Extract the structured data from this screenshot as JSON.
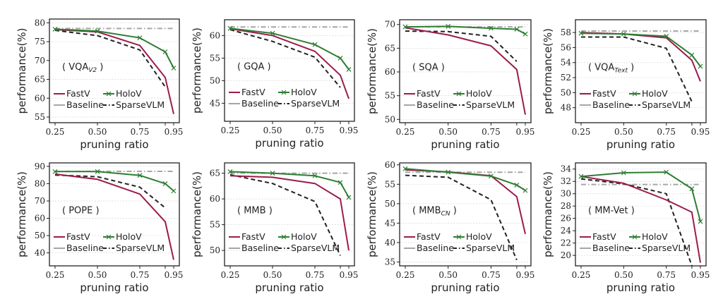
{
  "figure": {
    "colors": {
      "FastV": "#9b1c4c",
      "HoloV": "#2e7d32",
      "Baseline": "#a6a6a6",
      "SparseVLM": "#222222"
    },
    "legend_entries": [
      "FastV",
      "HoloV",
      "Baseline",
      "SparseVLM"
    ]
  },
  "chart_data": [
    {
      "type": "line",
      "title": "VQA",
      "title_sub": "V2",
      "xlabel": "pruning ratio",
      "ylabel": "performance(%)",
      "xticks": [
        "0.25",
        "0.50",
        "0.75",
        "0.95"
      ],
      "xtick_values": [
        0.25,
        0.5,
        0.75,
        0.95
      ],
      "x": [
        0.25,
        0.5,
        0.75,
        0.9,
        0.95
      ],
      "yticks": [
        55,
        60,
        65,
        70,
        75,
        80
      ],
      "ylim": [
        53.5,
        81
      ],
      "grid": true,
      "legend": "lower-left",
      "series": [
        {
          "name": "FastV",
          "values": [
            78.2,
            77.6,
            74.0,
            65.5,
            55.8
          ]
        },
        {
          "name": "HoloV",
          "values": [
            78.3,
            77.8,
            76.0,
            72.3,
            68.0
          ]
        },
        {
          "name": "Baseline",
          "values": [
            78.5,
            78.5,
            78.5,
            78.5,
            78.5
          ]
        },
        {
          "name": "SparseVLM",
          "values": [
            78.0,
            76.6,
            72.8,
            63.0,
            null
          ]
        }
      ]
    },
    {
      "type": "line",
      "title": "GQA",
      "title_sub": "",
      "xlabel": "pruning ratio",
      "ylabel": "performance(%)",
      "xticks": [
        "0.25",
        "0.50",
        "0.75",
        "0.95"
      ],
      "xtick_values": [
        0.25,
        0.5,
        0.75,
        0.95
      ],
      "x": [
        0.25,
        0.5,
        0.75,
        0.9,
        0.95
      ],
      "yticks": [
        45,
        50,
        55,
        60
      ],
      "ylim": [
        41,
        63.5
      ],
      "grid": true,
      "legend": "lower-left",
      "series": [
        {
          "name": "FastV",
          "values": [
            61.5,
            60.0,
            56.5,
            51.2,
            46.0
          ]
        },
        {
          "name": "HoloV",
          "values": [
            61.6,
            60.5,
            58.0,
            55.0,
            52.5
          ]
        },
        {
          "name": "Baseline",
          "values": [
            61.9,
            61.9,
            61.9,
            61.9,
            61.9
          ]
        },
        {
          "name": "SparseVLM",
          "values": [
            61.3,
            58.7,
            55.2,
            48.5,
            null
          ]
        }
      ]
    },
    {
      "type": "line",
      "title": "SQA",
      "title_sub": "",
      "xlabel": "pruning ratio",
      "ylabel": "performance(%)",
      "xticks": [
        "0.25",
        "0.50",
        "0.75",
        "0.95"
      ],
      "xtick_values": [
        0.25,
        0.5,
        0.75,
        0.95
      ],
      "x": [
        0.25,
        0.5,
        0.75,
        0.9,
        0.95
      ],
      "yticks": [
        50,
        55,
        60,
        65,
        70
      ],
      "ylim": [
        49.3,
        71
      ],
      "grid": true,
      "legend": "lower-left",
      "series": [
        {
          "name": "FastV",
          "values": [
            69.3,
            67.8,
            65.5,
            60.5,
            51.0
          ]
        },
        {
          "name": "HoloV",
          "values": [
            69.5,
            69.6,
            69.2,
            69.0,
            68.0
          ]
        },
        {
          "name": "Baseline",
          "values": [
            69.5,
            69.5,
            69.5,
            69.5,
            69.5
          ]
        },
        {
          "name": "SparseVLM",
          "values": [
            68.6,
            68.5,
            67.5,
            62.2,
            null
          ]
        }
      ]
    },
    {
      "type": "line",
      "title": "VQA",
      "title_sub": "Text",
      "xlabel": "pruning ratio",
      "ylabel": "performance(%)",
      "xticks": [
        "0.25",
        "0.50",
        "0.75",
        "0.95"
      ],
      "xtick_values": [
        0.25,
        0.5,
        0.75,
        0.95
      ],
      "x": [
        0.25,
        0.5,
        0.75,
        0.9,
        0.95
      ],
      "yticks": [
        48,
        50,
        52,
        54,
        56,
        58
      ],
      "ylim": [
        46,
        59.7
      ],
      "grid": true,
      "legend": "lower-left",
      "series": [
        {
          "name": "FastV",
          "values": [
            58.0,
            57.8,
            57.3,
            54.3,
            51.5
          ]
        },
        {
          "name": "HoloV",
          "values": [
            57.9,
            57.8,
            57.5,
            55.0,
            53.5
          ]
        },
        {
          "name": "Baseline",
          "values": [
            58.2,
            58.2,
            58.2,
            58.2,
            58.2
          ]
        },
        {
          "name": "SparseVLM",
          "values": [
            57.4,
            57.4,
            55.9,
            48.8,
            null
          ]
        }
      ]
    },
    {
      "type": "line",
      "title": "POPE",
      "title_sub": "",
      "xlabel": "pruning ratio",
      "ylabel": "performance(%)",
      "xticks": [
        "0.25",
        "0.50",
        "0.75",
        "0.95"
      ],
      "xtick_values": [
        0.25,
        0.5,
        0.75,
        0.95
      ],
      "x": [
        0.25,
        0.5,
        0.75,
        0.9,
        0.95
      ],
      "yticks": [
        40,
        50,
        60,
        70,
        80,
        90
      ],
      "ylim": [
        32.5,
        92
      ],
      "grid": true,
      "legend": "lower-left",
      "series": [
        {
          "name": "FastV",
          "values": [
            85.5,
            82.5,
            74.0,
            58.0,
            36.0
          ]
        },
        {
          "name": "HoloV",
          "values": [
            87.0,
            87.0,
            84.8,
            80.0,
            75.8
          ]
        },
        {
          "name": "Baseline",
          "values": [
            87.1,
            87.1,
            87.1,
            87.1,
            87.1
          ]
        },
        {
          "name": "SparseVLM",
          "values": [
            85.0,
            84.0,
            78.0,
            66.0,
            null
          ]
        }
      ]
    },
    {
      "type": "line",
      "title": "MMB",
      "title_sub": "",
      "xlabel": "pruning ratio",
      "ylabel": "performance(%)",
      "xticks": [
        "0.25",
        "0.50",
        "0.75",
        "0.95"
      ],
      "xtick_values": [
        0.25,
        0.5,
        0.75,
        0.95
      ],
      "x": [
        0.25,
        0.5,
        0.75,
        0.9,
        0.95
      ],
      "yticks": [
        50,
        55,
        60,
        65
      ],
      "ylim": [
        47,
        67
      ],
      "grid": true,
      "legend": "lower-left",
      "series": [
        {
          "name": "FastV",
          "values": [
            64.5,
            64.2,
            63.0,
            60.0,
            50.0
          ]
        },
        {
          "name": "HoloV",
          "values": [
            65.3,
            65.0,
            64.5,
            63.2,
            60.3
          ]
        },
        {
          "name": "Baseline",
          "values": [
            65.0,
            65.0,
            65.0,
            65.0,
            65.0
          ]
        },
        {
          "name": "SparseVLM",
          "values": [
            64.7,
            63.0,
            59.5,
            49.0,
            null
          ]
        }
      ]
    },
    {
      "type": "line",
      "title": "MMB",
      "title_sub": "CN",
      "xlabel": "pruning ratio",
      "ylabel": "performance(%)",
      "xticks": [
        "0.25",
        "0.50",
        "0.75",
        "0.95"
      ],
      "xtick_values": [
        0.25,
        0.5,
        0.75,
        0.95
      ],
      "x": [
        0.25,
        0.5,
        0.75,
        0.9,
        0.95
      ],
      "yticks": [
        35,
        40,
        45,
        50,
        55,
        60
      ],
      "ylim": [
        34,
        60.5
      ],
      "grid": true,
      "legend": "lower-left",
      "series": [
        {
          "name": "FastV",
          "values": [
            58.7,
            58.2,
            57.2,
            51.8,
            42.2
          ]
        },
        {
          "name": "HoloV",
          "values": [
            59.0,
            58.1,
            57.1,
            54.8,
            53.4
          ]
        },
        {
          "name": "Baseline",
          "values": [
            58.1,
            58.1,
            58.1,
            58.1,
            58.1
          ]
        },
        {
          "name": "SparseVLM",
          "values": [
            57.3,
            56.8,
            51.0,
            35.5,
            null
          ]
        }
      ]
    },
    {
      "type": "line",
      "title": "MM-Vet",
      "title_sub": "",
      "xlabel": "pruning ratio",
      "ylabel": "performance(%)",
      "xticks": [
        "0.25",
        "0.50",
        "0.75",
        "0.95"
      ],
      "xtick_values": [
        0.25,
        0.5,
        0.75,
        0.95
      ],
      "x": [
        0.25,
        0.5,
        0.75,
        0.9,
        0.95
      ],
      "yticks": [
        20,
        22,
        24,
        26,
        28,
        30,
        32,
        34
      ],
      "ylim": [
        18.3,
        35
      ],
      "grid": true,
      "legend": "lower-left",
      "series": [
        {
          "name": "FastV",
          "values": [
            32.8,
            31.7,
            29.0,
            27.0,
            18.8
          ]
        },
        {
          "name": "HoloV",
          "values": [
            32.8,
            33.4,
            33.5,
            30.8,
            25.5
          ]
        },
        {
          "name": "Baseline",
          "values": [
            31.5,
            31.5,
            31.5,
            31.5,
            31.5
          ]
        },
        {
          "name": "SparseVLM",
          "values": [
            32.4,
            31.6,
            30.0,
            18.3,
            null
          ]
        }
      ]
    }
  ]
}
